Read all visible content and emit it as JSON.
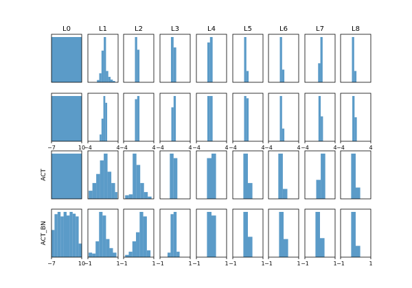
{
  "chart_data": {
    "type": "histogram-grid",
    "bar_color": "#5b9bc8",
    "column_titles": [
      "L0",
      "L1",
      "L2",
      "L3",
      "L4",
      "L5",
      "L6",
      "L7",
      "L8"
    ],
    "row_labels": [
      "",
      "",
      "ACT",
      "ACT_BN"
    ],
    "rows": [
      {
        "x_ticks": [],
        "panels": [
          {
            "xlim": [
              -7,
              10
            ],
            "edges": [
              -7,
              10
            ],
            "heights": [
              1.0
            ]
          },
          {
            "xlim": [
              -4,
              4
            ],
            "edges": [
              -1.6,
              -1.0,
              -0.4,
              0.2,
              0.8,
              1.4,
              2.0,
              2.6,
              3.2
            ],
            "heights": [
              0.05,
              0.2,
              0.7,
              1.0,
              0.25,
              0.12,
              0.06,
              0.03
            ]
          },
          {
            "xlim": [
              -4,
              4
            ],
            "edges": [
              -1.0,
              -0.4,
              0.2
            ],
            "heights": [
              1.0,
              0.72
            ]
          },
          {
            "xlim": [
              -4,
              4
            ],
            "edges": [
              -1.1,
              -0.4,
              0.3
            ],
            "heights": [
              1.0,
              0.77
            ]
          },
          {
            "xlim": [
              -4,
              4
            ],
            "edges": [
              -1.1,
              -0.4,
              0.3
            ],
            "heights": [
              0.88,
              1.0
            ]
          },
          {
            "xlim": [
              -4,
              4
            ],
            "edges": [
              -1.0,
              -0.4,
              0.2
            ],
            "heights": [
              1.0,
              0.25
            ]
          },
          {
            "xlim": [
              -4,
              4
            ],
            "edges": [
              -1.0,
              -0.4,
              0.2
            ],
            "heights": [
              1.0,
              0.28
            ]
          },
          {
            "xlim": [
              -4,
              4
            ],
            "edges": [
              -0.5,
              0.1,
              0.7
            ],
            "heights": [
              0.42,
              1.0
            ]
          },
          {
            "xlim": [
              -4,
              4
            ],
            "edges": [
              -1.0,
              -0.4,
              0.2
            ],
            "heights": [
              1.0,
              0.25
            ]
          }
        ]
      },
      {
        "x_ticks": [
          {
            "values": [
              -7,
              10
            ],
            "labels": [
              "−7",
              "10"
            ]
          },
          {
            "values": [
              -4,
              4
            ],
            "labels": [
              "−4",
              "4"
            ]
          },
          {
            "values": [
              -4,
              4
            ],
            "labels": [
              "−4",
              "4"
            ]
          },
          {
            "values": [
              -4,
              4
            ],
            "labels": [
              "−4",
              "4"
            ]
          },
          {
            "values": [
              -4,
              4
            ],
            "labels": [
              "−4",
              "4"
            ]
          },
          {
            "values": [
              -4,
              4
            ],
            "labels": [
              "−4",
              "4"
            ]
          },
          {
            "values": [
              -4,
              4
            ],
            "labels": [
              "−4",
              "4"
            ]
          },
          {
            "values": [
              -4,
              4
            ],
            "labels": [
              "−4",
              "4"
            ]
          },
          {
            "values": [
              -4,
              4
            ],
            "labels": [
              "−4",
              "4"
            ]
          }
        ],
        "panels": [
          {
            "xlim": [
              -7,
              10
            ],
            "edges": [
              -7,
              10
            ],
            "heights": [
              1.0
            ]
          },
          {
            "xlim": [
              -4,
              4
            ],
            "edges": [
              -0.9,
              -0.4,
              0.1,
              0.6,
              1.1
            ],
            "heights": [
              0.15,
              0.5,
              1.0,
              0.85
            ]
          },
          {
            "xlim": [
              -4,
              4
            ],
            "edges": [
              -1.0,
              -0.4,
              0.2
            ],
            "heights": [
              0.93,
              1.0
            ]
          },
          {
            "xlim": [
              -4,
              4
            ],
            "edges": [
              -1.0,
              -0.4,
              0.2
            ],
            "heights": [
              0.75,
              1.0
            ]
          },
          {
            "xlim": [
              -4,
              4
            ],
            "edges": [
              -1.1,
              -0.4,
              0.3
            ],
            "heights": [
              1.0,
              1.0
            ]
          },
          {
            "xlim": [
              -4,
              4
            ],
            "edges": [
              -1.0,
              -0.4,
              0.2
            ],
            "heights": [
              1.0,
              0.95
            ]
          },
          {
            "xlim": [
              -4,
              4
            ],
            "edges": [
              -1.0,
              -0.4,
              0.2
            ],
            "heights": [
              1.0,
              0.28
            ]
          },
          {
            "xlim": [
              -4,
              4
            ],
            "edges": [
              -0.4,
              0.2,
              0.8
            ],
            "heights": [
              1.0,
              0.55
            ]
          },
          {
            "xlim": [
              -4,
              4
            ],
            "edges": [
              -0.9,
              -0.3,
              0.3
            ],
            "heights": [
              1.0,
              0.53
            ]
          }
        ]
      },
      {
        "x_ticks": [],
        "panels": [
          {
            "xlim": [
              -7,
              10
            ],
            "edges": [
              -7,
              10
            ],
            "heights": [
              1.0
            ]
          },
          {
            "xlim": [
              -1,
              1
            ],
            "edges": [
              -0.95,
              -0.7,
              -0.45,
              -0.2,
              0.05,
              0.3,
              0.55,
              0.8,
              0.95
            ],
            "heights": [
              0.18,
              0.35,
              0.55,
              0.85,
              1.0,
              0.6,
              0.35,
              0.15
            ]
          },
          {
            "xlim": [
              -1,
              1
            ],
            "edges": [
              -0.9,
              -0.65,
              -0.4,
              -0.15,
              0.1,
              0.35,
              0.6,
              0.85
            ],
            "heights": [
              0.08,
              0.1,
              1.0,
              0.75,
              0.35,
              0.15,
              0.05
            ]
          },
          {
            "xlim": [
              -1,
              1
            ],
            "edges": [
              -0.35,
              -0.1,
              0.15
            ],
            "heights": [
              1.0,
              0.9
            ]
          },
          {
            "xlim": [
              -1,
              1
            ],
            "edges": [
              -0.3,
              0.0,
              0.3
            ],
            "heights": [
              0.9,
              1.0
            ]
          },
          {
            "xlim": [
              -1,
              1
            ],
            "edges": [
              -0.3,
              0.0,
              0.3
            ],
            "heights": [
              1.0,
              0.35
            ]
          },
          {
            "xlim": [
              -1,
              1
            ],
            "edges": [
              -0.35,
              -0.05,
              0.25
            ],
            "heights": [
              1.0,
              0.22
            ]
          },
          {
            "xlim": [
              -1,
              1
            ],
            "edges": [
              -0.25,
              0.05,
              0.35
            ],
            "heights": [
              0.42,
              1.0
            ]
          },
          {
            "xlim": [
              -1,
              1
            ],
            "edges": [
              -0.3,
              0.0,
              0.3
            ],
            "heights": [
              1.0,
              0.25
            ]
          }
        ]
      },
      {
        "x_ticks": [
          {
            "values": [
              -7,
              10
            ],
            "labels": [
              "−7",
              "10"
            ]
          },
          {
            "values": [
              -1,
              1
            ],
            "labels": [
              "−1",
              "1"
            ]
          },
          {
            "values": [
              -1,
              1
            ],
            "labels": [
              "−1",
              "1"
            ]
          },
          {
            "values": [
              -1,
              1
            ],
            "labels": [
              "−1",
              "1"
            ]
          },
          {
            "values": [
              -1,
              1
            ],
            "labels": [
              "−1",
              "1"
            ]
          },
          {
            "values": [
              -1,
              1
            ],
            "labels": [
              "−1",
              "1"
            ]
          },
          {
            "values": [
              -1,
              1
            ],
            "labels": [
              "−1",
              "1"
            ]
          },
          {
            "values": [
              -1,
              1
            ],
            "labels": [
              "−1",
              "1"
            ]
          },
          {
            "values": [
              -1,
              1
            ],
            "labels": [
              "−1",
              "1"
            ]
          }
        ],
        "panels": [
          {
            "xlim": [
              -7,
              10
            ],
            "edges": [
              -7,
              -5.3,
              -3.6,
              -1.9,
              -0.2,
              1.5,
              3.2,
              4.9,
              6.6,
              8.3,
              10
            ],
            "heights": [
              0.6,
              0.95,
              1.0,
              0.9,
              1.0,
              0.92,
              1.0,
              0.96,
              0.9,
              0.3
            ]
          },
          {
            "xlim": [
              -1,
              1
            ],
            "edges": [
              -0.95,
              -0.72,
              -0.49,
              -0.26,
              -0.03,
              0.2,
              0.43,
              0.66,
              0.89
            ],
            "heights": [
              0.1,
              0.08,
              0.35,
              1.0,
              0.92,
              0.4,
              0.2,
              0.1
            ]
          },
          {
            "xlim": [
              -1,
              1
            ],
            "edges": [
              -0.9,
              -0.66,
              -0.42,
              -0.18,
              0.06,
              0.3,
              0.54,
              0.78
            ],
            "heights": [
              0.05,
              0.12,
              0.35,
              0.55,
              1.0,
              0.9,
              0.15
            ]
          },
          {
            "xlim": [
              -1,
              1
            ],
            "edges": [
              -0.5,
              -0.3,
              -0.1,
              0.1,
              0.3
            ],
            "heights": [
              0.1,
              0.95,
              1.0,
              0.12
            ]
          },
          {
            "xlim": [
              -1,
              1
            ],
            "edges": [
              -0.3,
              0.0,
              0.3
            ],
            "heights": [
              1.0,
              0.92
            ]
          },
          {
            "xlim": [
              -1,
              1
            ],
            "edges": [
              -0.3,
              0.0,
              0.3
            ],
            "heights": [
              1.0,
              0.45
            ]
          },
          {
            "xlim": [
              -1,
              1
            ],
            "edges": [
              -0.3,
              0.0,
              0.3
            ],
            "heights": [
              1.0,
              0.4
            ]
          },
          {
            "xlim": [
              -1,
              1
            ],
            "edges": [
              -0.3,
              0.0,
              0.3
            ],
            "heights": [
              1.0,
              0.42
            ]
          },
          {
            "xlim": [
              -1,
              1
            ],
            "edges": [
              -0.3,
              0.0,
              0.3
            ],
            "heights": [
              1.0,
              0.25
            ]
          }
        ]
      }
    ]
  }
}
